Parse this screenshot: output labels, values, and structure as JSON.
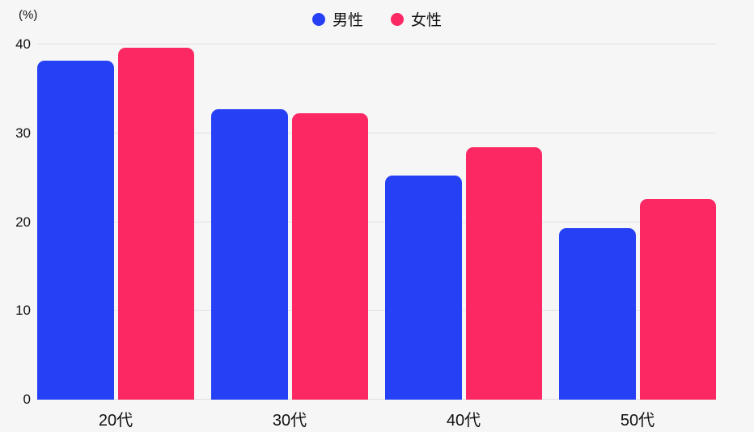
{
  "app": {
    "background_color": "#f6f6f7",
    "grid_color": "#e1e1e4",
    "text_color": "#111111"
  },
  "unit_label": "(%)",
  "chart_data": {
    "type": "bar",
    "title": "",
    "xlabel": "",
    "ylabel": "(%)",
    "categories": [
      "20代",
      "30代",
      "40代",
      "50代"
    ],
    "series": [
      {
        "name": "男性",
        "color": "#2640f5",
        "values": [
          38.2,
          32.7,
          25.2,
          19.3
        ]
      },
      {
        "name": "女性",
        "color": "#fc2864",
        "values": [
          39.6,
          32.3,
          28.4,
          22.6
        ]
      }
    ],
    "ylim": [
      0,
      40
    ],
    "yticks": [
      0,
      10,
      20,
      30,
      40
    ],
    "grid": true,
    "legend_position": "top-center"
  }
}
